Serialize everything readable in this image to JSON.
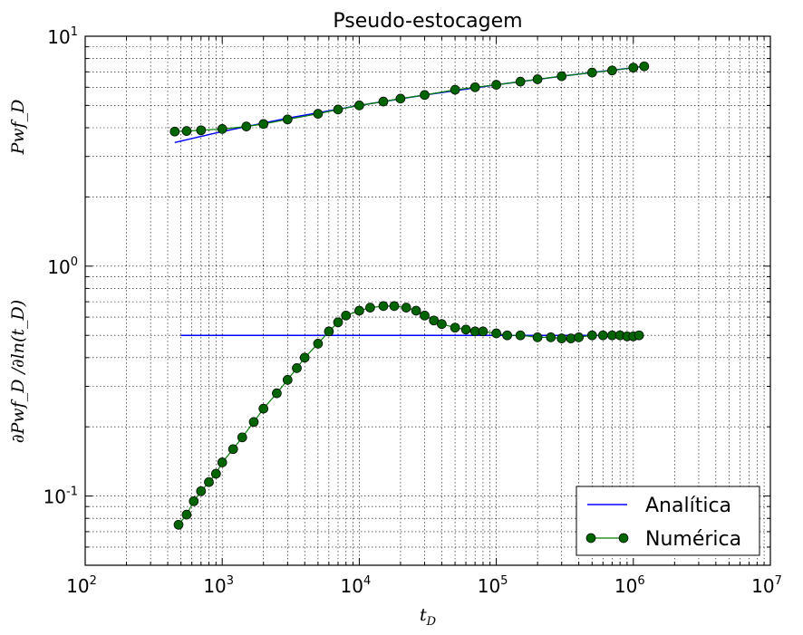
{
  "chart_data": {
    "type": "line",
    "title": "Pseudo-estocagem",
    "xlabel": "t_D",
    "ylabel_upper": "Pwf_D",
    "ylabel_lower": "∂Pwf_D /∂ln(t_D)",
    "xscale": "log",
    "yscale": "log",
    "xlim": [
      100,
      10000000
    ],
    "ylim": [
      0.05,
      10
    ],
    "grid": true,
    "legend_position": "bottom-right",
    "x_ticks": [
      {
        "base": "10",
        "exp": "2"
      },
      {
        "base": "10",
        "exp": "3"
      },
      {
        "base": "10",
        "exp": "4"
      },
      {
        "base": "10",
        "exp": "5"
      },
      {
        "base": "10",
        "exp": "6"
      },
      {
        "base": "10",
        "exp": "7"
      }
    ],
    "y_ticks": [
      {
        "base": "10",
        "exp": "-1",
        "value": 0.1
      },
      {
        "base": "10",
        "exp": "0",
        "value": 1
      },
      {
        "base": "10",
        "exp": "1",
        "value": 10
      }
    ],
    "legend": {
      "analytic": "Analítica",
      "numeric": "Numérica"
    },
    "colors": {
      "analytic": "#0000ff",
      "numeric_fill": "#006400",
      "numeric_line": "#008000"
    },
    "series": [
      {
        "name": "Analítica",
        "role": "pressure",
        "style": "line",
        "x": [
          450,
          1000,
          3000,
          10000,
          30000,
          100000,
          300000,
          1000000,
          1200000
        ],
        "y": [
          3.45,
          3.85,
          4.4,
          5.0,
          5.55,
          6.15,
          6.7,
          7.3,
          7.4
        ]
      },
      {
        "name": "Analítica",
        "role": "derivative",
        "style": "line",
        "x": [
          500,
          1100000
        ],
        "y": [
          0.5,
          0.5
        ]
      },
      {
        "name": "Numérica",
        "role": "pressure",
        "style": "markers",
        "x": [
          450,
          550,
          700,
          1000,
          1500,
          2000,
          3000,
          5000,
          7000,
          10000,
          15000,
          20000,
          30000,
          50000,
          70000,
          100000,
          150000,
          200000,
          300000,
          500000,
          700000,
          1000000,
          1200000
        ],
        "y": [
          3.85,
          3.87,
          3.9,
          3.95,
          4.05,
          4.15,
          4.35,
          4.6,
          4.8,
          5.0,
          5.2,
          5.35,
          5.55,
          5.85,
          6.0,
          6.15,
          6.35,
          6.5,
          6.7,
          6.95,
          7.1,
          7.3,
          7.4
        ]
      },
      {
        "name": "Numérica",
        "role": "derivative",
        "style": "markers",
        "x": [
          480,
          550,
          620,
          700,
          800,
          900,
          1000,
          1200,
          1400,
          1700,
          2000,
          2500,
          3000,
          3500,
          4000,
          5000,
          6000,
          7000,
          8000,
          10000,
          12000,
          15000,
          18000,
          22000,
          26000,
          30000,
          35000,
          40000,
          50000,
          60000,
          70000,
          80000,
          100000,
          120000,
          150000,
          200000,
          250000,
          300000,
          350000,
          400000,
          500000,
          600000,
          700000,
          800000,
          900000,
          1000000,
          1100000
        ],
        "y": [
          0.075,
          0.083,
          0.095,
          0.105,
          0.115,
          0.125,
          0.14,
          0.16,
          0.18,
          0.21,
          0.24,
          0.28,
          0.32,
          0.36,
          0.4,
          0.46,
          0.52,
          0.57,
          0.61,
          0.64,
          0.66,
          0.67,
          0.67,
          0.66,
          0.64,
          0.61,
          0.58,
          0.56,
          0.54,
          0.53,
          0.52,
          0.52,
          0.51,
          0.5,
          0.5,
          0.49,
          0.49,
          0.485,
          0.485,
          0.49,
          0.5,
          0.5,
          0.5,
          0.5,
          0.495,
          0.495,
          0.5
        ]
      }
    ]
  }
}
